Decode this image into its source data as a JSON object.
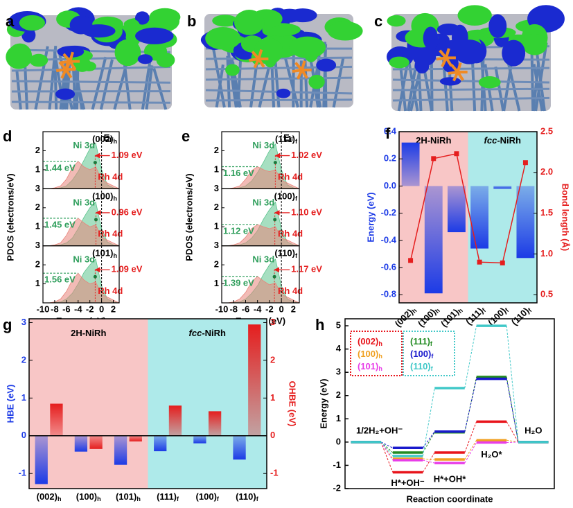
{
  "chart_data": [
    {
      "type": "structure",
      "label": "a"
    },
    {
      "type": "structure",
      "label": "b"
    },
    {
      "type": "structure",
      "label": "c"
    },
    {
      "type": "pdos",
      "label": "d",
      "xlabel": "Energy (eV)",
      "ylabel": "PDOS (electrons/eV)",
      "xlim": [
        -10,
        3
      ],
      "xticks": [
        -10,
        -8,
        -6,
        -4,
        -2,
        0,
        2
      ],
      "fermi_level": 0,
      "fermi_label": {
        "text": "E",
        "sub": "F"
      },
      "x": [
        -10,
        -9,
        -8,
        -7,
        -6,
        -5,
        -4,
        -3,
        -2,
        -1,
        0,
        1,
        2,
        3
      ],
      "subplots": [
        {
          "facet": {
            "text": "(002)",
            "sub": "h"
          },
          "ylim": [
            0,
            3
          ],
          "yticks": [
            1,
            2
          ],
          "level": {
            "value": 1.44,
            "label": "1.44 eV"
          },
          "gap": {
            "value": 1.09,
            "label": "1.09 eV"
          },
          "series": [
            {
              "name": "Ni 3d",
              "color": "#5cc48e",
              "values": [
                0,
                0,
                0.02,
                0.05,
                0.15,
                0.45,
                0.9,
                1.5,
                2.1,
                2.4,
                1.0,
                0.2,
                0.05,
                0
              ]
            },
            {
              "name": "Rh 4d",
              "color": "#e8837a",
              "values": [
                0,
                0,
                0.05,
                0.15,
                0.5,
                1.1,
                1.44,
                1.15,
                1.0,
                1.15,
                0.5,
                0.3,
                0.15,
                0
              ]
            }
          ]
        },
        {
          "facet": {
            "text": "(100)",
            "sub": "h"
          },
          "ylim": [
            0,
            3
          ],
          "yticks": [
            1,
            2,
            3
          ],
          "level": {
            "value": 1.45,
            "label": "1.45 eV"
          },
          "gap": {
            "value": 0.96,
            "label": "0.96 eV"
          },
          "series": [
            {
              "name": "Ni 3d",
              "color": "#5cc48e",
              "values": [
                0,
                0,
                0.02,
                0.05,
                0.15,
                0.4,
                0.9,
                1.5,
                2.0,
                2.3,
                0.9,
                0.2,
                0.05,
                0
              ]
            },
            {
              "name": "Rh 4d",
              "color": "#e8837a",
              "values": [
                0,
                0,
                0.05,
                0.15,
                0.55,
                1.15,
                1.45,
                1.2,
                1.0,
                1.1,
                0.45,
                0.3,
                0.15,
                0
              ]
            }
          ]
        },
        {
          "facet": {
            "text": "(101)",
            "sub": "h"
          },
          "ylim": [
            0,
            3
          ],
          "yticks": [
            1,
            2,
            3
          ],
          "level": {
            "value": 1.56,
            "label": "1.56 eV"
          },
          "gap": {
            "value": 1.09,
            "label": "1.09 eV"
          },
          "series": [
            {
              "name": "Ni 3d",
              "color": "#5cc48e",
              "values": [
                0,
                0,
                0.02,
                0.05,
                0.2,
                0.5,
                1.0,
                1.6,
                2.0,
                2.3,
                0.9,
                0.2,
                0.05,
                0
              ]
            },
            {
              "name": "Rh 4d",
              "color": "#e8837a",
              "values": [
                0,
                0,
                0.05,
                0.2,
                0.6,
                1.2,
                1.56,
                1.2,
                1.0,
                1.1,
                0.45,
                0.3,
                0.15,
                0
              ]
            }
          ]
        }
      ]
    },
    {
      "type": "pdos",
      "label": "e",
      "xlabel": "Energy (eV)",
      "ylabel": "PDOS (electrons/eV)",
      "xlim": [
        -10,
        3
      ],
      "xticks": [
        -10,
        -8,
        -6,
        -4,
        -2,
        0,
        2
      ],
      "fermi_level": 0,
      "fermi_label": {
        "text": "E",
        "sub": "F"
      },
      "x": [
        -10,
        -9,
        -8,
        -7,
        -6,
        -5,
        -4,
        -3,
        -2,
        -1,
        0,
        1,
        2,
        3
      ],
      "subplots": [
        {
          "facet": {
            "text": "(111)",
            "sub": "f"
          },
          "ylim": [
            0,
            3
          ],
          "yticks": [
            1,
            2
          ],
          "level": {
            "value": 1.16,
            "label": "1.16 eV"
          },
          "gap": {
            "value": 1.02,
            "label": "1.02 eV"
          },
          "series": [
            {
              "name": "Ni 3d",
              "color": "#5cc48e",
              "values": [
                0,
                0,
                0.02,
                0.05,
                0.15,
                0.4,
                0.85,
                1.4,
                2.0,
                2.35,
                1.0,
                0.2,
                0.05,
                0
              ]
            },
            {
              "name": "Rh 4d",
              "color": "#e8837a",
              "values": [
                0,
                0,
                0.05,
                0.15,
                0.5,
                0.95,
                1.16,
                1.0,
                0.9,
                1.0,
                0.45,
                0.3,
                0.15,
                0
              ]
            }
          ]
        },
        {
          "facet": {
            "text": "(100)",
            "sub": "f"
          },
          "ylim": [
            0,
            3
          ],
          "yticks": [
            1,
            2,
            3
          ],
          "level": {
            "value": 1.12,
            "label": "1.12 eV"
          },
          "gap": {
            "value": 1.1,
            "label": "1.10 eV"
          },
          "series": [
            {
              "name": "Ni 3d",
              "color": "#5cc48e",
              "values": [
                0,
                0,
                0.02,
                0.05,
                0.15,
                0.4,
                0.8,
                1.4,
                1.9,
                2.3,
                0.9,
                0.2,
                0.05,
                0
              ]
            },
            {
              "name": "Rh 4d",
              "color": "#e8837a",
              "values": [
                0,
                0,
                0.05,
                0.15,
                0.45,
                0.9,
                1.12,
                1.0,
                0.9,
                1.0,
                0.4,
                0.3,
                0.15,
                0
              ]
            }
          ]
        },
        {
          "facet": {
            "text": "(110)",
            "sub": "f"
          },
          "ylim": [
            0,
            3
          ],
          "yticks": [
            1,
            2,
            3
          ],
          "level": {
            "value": 1.39,
            "label": "1.39 eV"
          },
          "gap": {
            "value": 1.17,
            "label": "1.17 eV"
          },
          "series": [
            {
              "name": "Ni 3d",
              "color": "#5cc48e",
              "values": [
                0,
                0,
                0.02,
                0.05,
                0.2,
                0.5,
                0.9,
                1.5,
                2.0,
                2.3,
                0.9,
                0.2,
                0.05,
                0
              ]
            },
            {
              "name": "Rh 4d",
              "color": "#e8837a",
              "values": [
                0,
                0,
                0.05,
                0.2,
                0.55,
                1.1,
                1.39,
                1.15,
                0.95,
                1.05,
                0.45,
                0.3,
                0.15,
                0
              ]
            }
          ]
        }
      ]
    },
    {
      "type": "bar_line",
      "label": "f",
      "ylabel": "Energy (eV)",
      "y2label": "Bond length (Å)",
      "categories": [
        {
          "text": "(002)",
          "sub": "h"
        },
        {
          "text": "(100)",
          "sub": "h"
        },
        {
          "text": "(101)",
          "sub": "h"
        },
        {
          "text": "(111)",
          "sub": "f"
        },
        {
          "text": "(100)",
          "sub": "f"
        },
        {
          "text": "(110)",
          "sub": "f"
        }
      ],
      "regions": [
        {
          "text": "2H-NiRh",
          "color": "#f8c6c6"
        },
        {
          "italic": "fcc",
          "text": "-NiRh",
          "color": "#aeeaea"
        }
      ],
      "ylim": [
        -0.86,
        0.4
      ],
      "yticks": [
        -0.8,
        -0.6,
        -0.4,
        -0.2,
        {
          "value": 0,
          "label": "0.0"
        },
        0.2,
        0.4
      ],
      "y2lim": [
        0.4,
        2.5
      ],
      "y2ticks": [
        0.5,
        {
          "value": 1,
          "label": "1.0"
        },
        1.5,
        {
          "value": 2,
          "label": "2.0"
        },
        2.5
      ],
      "series": [
        {
          "color": "#1c3be6",
          "values": [
            0.32,
            -0.79,
            -0.34,
            -0.46,
            -0.02,
            -0.53
          ]
        },
        {
          "color": "#e51e1e",
          "axis": "y2",
          "values": [
            0.92,
            2.17,
            2.23,
            0.9,
            0.89,
            2.12
          ]
        }
      ]
    },
    {
      "type": "dual_bar",
      "label": "g",
      "ylabel": "HBE (eV)",
      "y2label": "OHBE (eV)",
      "categories": [
        {
          "text": "(002)",
          "sub": "h"
        },
        {
          "text": "(100)",
          "sub": "h"
        },
        {
          "text": "(101)",
          "sub": "h"
        },
        {
          "text": "(111)",
          "sub": "f"
        },
        {
          "text": "(100)",
          "sub": "f"
        },
        {
          "text": "(110)",
          "sub": "f"
        }
      ],
      "regions": [
        {
          "text": "2H-NiRh",
          "color": "#f8c6c6"
        },
        {
          "italic": "fcc",
          "text": "-NiRh",
          "color": "#aeeaea"
        }
      ],
      "ylim": [
        -1.4,
        3.1
      ],
      "yticks": [
        -1,
        0,
        1,
        2,
        3
      ],
      "y2lim": [
        -1.4,
        3.1
      ],
      "y2ticks": [
        -1,
        0,
        1,
        2,
        3
      ],
      "series": [
        {
          "color": "#1c3be6",
          "values": [
            -1.28,
            -0.42,
            -0.77,
            -0.41,
            -0.2,
            -0.63
          ]
        },
        {
          "color": "#e51e1e",
          "axis": "y2",
          "values": [
            0.85,
            -0.35,
            -0.15,
            0.8,
            0.65,
            2.95
          ]
        }
      ]
    },
    {
      "type": "energy_diagram",
      "label": "h",
      "xlabel": "Reaction coordinate",
      "ylabel": "Energy (eV)",
      "categories": [
        "1/2H₂+OH⁻",
        "H*+OH⁻",
        "H*+OH*",
        "H₂O*",
        "H₂O"
      ],
      "ylim": [
        -2,
        5.3
      ],
      "yticks": [
        -2,
        -1,
        0,
        1,
        2,
        3,
        4,
        5
      ],
      "series": [
        {
          "name": {
            "text": "(002)",
            "sub": "h"
          },
          "color": "#e8141b",
          "values": [
            0,
            -1.3,
            -0.45,
            0.88,
            0
          ]
        },
        {
          "name": {
            "text": "(100)",
            "sub": "h"
          },
          "color": "#f0a020",
          "values": [
            0,
            -0.72,
            -0.75,
            0.08,
            0
          ]
        },
        {
          "name": {
            "text": "(101)",
            "sub": "h"
          },
          "color": "#e83ee8",
          "values": [
            0,
            -0.78,
            -0.9,
            -0.02,
            0
          ]
        },
        {
          "name": {
            "text": "(111)",
            "sub": "f"
          },
          "color": "#228b22",
          "values": [
            0,
            -0.45,
            0.42,
            2.8,
            0
          ]
        },
        {
          "name": {
            "text": "(100)",
            "sub": "f"
          },
          "color": "#1a1acc",
          "values": [
            0,
            -0.25,
            0.45,
            2.72,
            0
          ]
        },
        {
          "name": {
            "text": "(110)",
            "sub": "f"
          },
          "color": "#40c8c8",
          "values": [
            0,
            -0.6,
            2.32,
            5.0,
            0
          ]
        }
      ]
    }
  ]
}
